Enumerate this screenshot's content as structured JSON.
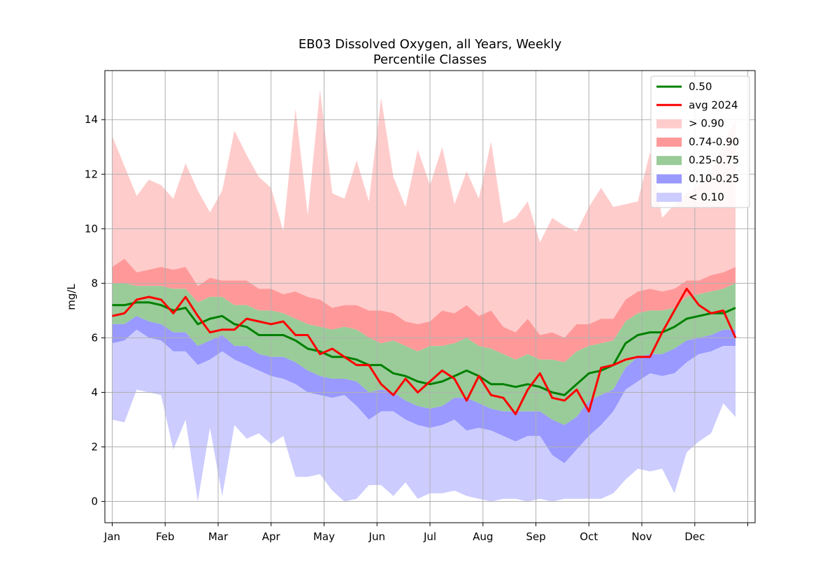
{
  "chart_data": {
    "type": "area",
    "title": "EB03 Dissolved Oxygen, all Years, Weekly",
    "subtitle": "Percentile Classes",
    "xlabel": "",
    "ylabel": "mg/L",
    "x_ticks": [
      "Jan",
      "Feb",
      "Mar",
      "Apr",
      "May",
      "Jun",
      "Jul",
      "Aug",
      "Sep",
      "Oct",
      "Nov",
      "Dec",
      ""
    ],
    "y_ticks": [
      0,
      2,
      4,
      6,
      8,
      10,
      12,
      14
    ],
    "ylim": [
      -0.78,
      15.8
    ],
    "xlim_weeks": [
      -0.6,
      52.6
    ],
    "grid": true,
    "legend_position": "top-right",
    "weeks": [
      0,
      1,
      2,
      3,
      4,
      5,
      6,
      7,
      8,
      9,
      10,
      11,
      12,
      13,
      14,
      15,
      16,
      17,
      18,
      19,
      20,
      21,
      22,
      23,
      24,
      25,
      26,
      27,
      28,
      29,
      30,
      31,
      32,
      33,
      34,
      35,
      36,
      37,
      38,
      39,
      40,
      41,
      42,
      43,
      44,
      45,
      46,
      47,
      48,
      49,
      50,
      51
    ],
    "bands": [
      {
        "name": "> 0.90",
        "color": "#ffcccc",
        "lower": [
          8.6,
          8.9,
          8.4,
          8.5,
          8.6,
          8.5,
          8.6,
          7.9,
          8.2,
          8.1,
          8.1,
          8.1,
          7.8,
          7.8,
          7.6,
          7.7,
          7.5,
          7.4,
          7.1,
          7.2,
          7.2,
          7.0,
          7.0,
          6.9,
          6.6,
          6.5,
          6.6,
          7.0,
          6.9,
          7.2,
          6.8,
          7.0,
          6.4,
          6.2,
          6.7,
          6.1,
          6.2,
          6.0,
          6.5,
          6.5,
          6.7,
          6.7,
          7.4,
          7.7,
          7.8,
          7.7,
          7.8,
          8.1,
          8.1,
          8.3,
          8.4,
          8.6
        ],
        "upper": [
          13.4,
          12.3,
          11.2,
          11.8,
          11.6,
          11.1,
          12.4,
          11.4,
          10.6,
          11.4,
          13.6,
          12.7,
          11.9,
          11.5,
          9.9,
          14.4,
          10.5,
          15.1,
          11.3,
          11.1,
          12.5,
          11.0,
          14.8,
          11.9,
          10.8,
          12.9,
          11.6,
          13.0,
          10.9,
          12.1,
          11.1,
          13.2,
          10.2,
          10.4,
          11.0,
          9.5,
          10.4,
          10.1,
          9.9,
          10.8,
          11.5,
          10.8,
          10.9,
          11.0,
          12.8,
          10.4,
          10.9,
          11.3,
          11.6,
          12.1,
          13.1,
          14.0
        ]
      },
      {
        "name": "0.74-0.90",
        "color": "#ff9999",
        "lower": [
          8.0,
          8.0,
          7.9,
          7.9,
          7.9,
          7.8,
          7.8,
          7.3,
          7.5,
          7.5,
          7.2,
          7.2,
          7.0,
          7.0,
          6.9,
          6.7,
          6.5,
          6.4,
          6.3,
          6.4,
          6.3,
          6.0,
          5.8,
          5.9,
          5.7,
          5.5,
          5.7,
          5.7,
          5.8,
          6.0,
          5.7,
          5.6,
          5.4,
          5.2,
          5.4,
          5.2,
          5.2,
          5.1,
          5.5,
          5.7,
          5.8,
          5.9,
          6.6,
          6.9,
          7.0,
          7.0,
          7.1,
          7.5,
          7.6,
          7.7,
          7.8,
          8.0
        ],
        "upper": [
          8.6,
          8.9,
          8.4,
          8.5,
          8.6,
          8.5,
          8.6,
          7.9,
          8.2,
          8.1,
          8.1,
          8.1,
          7.8,
          7.8,
          7.6,
          7.7,
          7.5,
          7.4,
          7.1,
          7.2,
          7.2,
          7.0,
          7.0,
          6.9,
          6.6,
          6.5,
          6.6,
          7.0,
          6.9,
          7.2,
          6.8,
          7.0,
          6.4,
          6.2,
          6.7,
          6.1,
          6.2,
          6.0,
          6.5,
          6.5,
          6.7,
          6.7,
          7.4,
          7.7,
          7.8,
          7.7,
          7.8,
          8.1,
          8.1,
          8.3,
          8.4,
          8.6
        ]
      },
      {
        "name": "0.25-0.75",
        "color": "#99cc99",
        "lower": [
          6.5,
          6.5,
          6.8,
          6.6,
          6.5,
          6.2,
          6.2,
          5.7,
          5.9,
          6.1,
          5.7,
          5.7,
          5.4,
          5.3,
          5.3,
          5.1,
          4.8,
          4.6,
          4.5,
          4.5,
          4.4,
          4.0,
          4.1,
          4.0,
          3.7,
          3.5,
          3.4,
          3.5,
          3.8,
          3.8,
          3.6,
          3.4,
          3.3,
          3.3,
          3.3,
          3.3,
          3.0,
          2.8,
          3.1,
          3.7,
          3.9,
          4.1,
          4.9,
          5.3,
          5.4,
          5.4,
          5.6,
          5.9,
          6.0,
          6.1,
          6.3,
          6.3
        ],
        "upper": [
          8.0,
          8.0,
          7.9,
          7.9,
          7.9,
          7.8,
          7.8,
          7.3,
          7.5,
          7.5,
          7.2,
          7.2,
          7.0,
          7.0,
          6.9,
          6.7,
          6.5,
          6.4,
          6.3,
          6.4,
          6.3,
          6.0,
          5.8,
          5.9,
          5.7,
          5.5,
          5.7,
          5.7,
          5.8,
          6.0,
          5.7,
          5.6,
          5.4,
          5.2,
          5.4,
          5.2,
          5.2,
          5.1,
          5.5,
          5.7,
          5.8,
          5.9,
          6.6,
          6.9,
          7.0,
          7.0,
          7.1,
          7.5,
          7.6,
          7.7,
          7.8,
          8.0
        ]
      },
      {
        "name": "0.10-0.25",
        "color": "#9999ff",
        "lower": [
          5.8,
          5.9,
          6.3,
          6.0,
          5.9,
          5.5,
          5.5,
          5.0,
          5.2,
          5.5,
          5.2,
          5.0,
          4.8,
          4.6,
          4.5,
          4.3,
          4.0,
          3.9,
          3.8,
          3.9,
          3.5,
          3.0,
          3.3,
          3.3,
          3.0,
          2.8,
          2.7,
          2.8,
          3.0,
          2.6,
          2.7,
          2.6,
          2.4,
          2.2,
          2.4,
          2.4,
          1.7,
          1.4,
          1.9,
          2.4,
          2.8,
          3.3,
          4.1,
          4.4,
          4.7,
          4.6,
          4.7,
          5.1,
          5.4,
          5.5,
          5.7,
          5.7
        ],
        "upper": [
          6.5,
          6.5,
          6.8,
          6.6,
          6.5,
          6.2,
          6.2,
          5.7,
          5.9,
          6.1,
          5.7,
          5.7,
          5.4,
          5.3,
          5.3,
          5.1,
          4.8,
          4.6,
          4.5,
          4.5,
          4.4,
          4.0,
          4.1,
          4.0,
          3.7,
          3.5,
          3.4,
          3.5,
          3.8,
          3.8,
          3.6,
          3.4,
          3.3,
          3.3,
          3.3,
          3.3,
          3.0,
          2.8,
          3.1,
          3.7,
          3.9,
          4.1,
          4.9,
          5.3,
          5.4,
          5.4,
          5.6,
          5.9,
          6.0,
          6.1,
          6.3,
          6.3
        ]
      },
      {
        "name": "< 0.10",
        "color": "#ccccff",
        "lower": [
          3.0,
          2.9,
          4.1,
          4.0,
          3.9,
          1.9,
          3.0,
          0.0,
          2.7,
          0.2,
          2.8,
          2.3,
          2.5,
          2.1,
          2.4,
          0.9,
          0.9,
          1.0,
          0.4,
          0.0,
          0.1,
          0.6,
          0.6,
          0.2,
          0.7,
          0.1,
          0.3,
          0.3,
          0.4,
          0.2,
          0.1,
          0.0,
          0.1,
          0.1,
          0.0,
          0.1,
          0.0,
          0.1,
          0.1,
          0.1,
          0.1,
          0.3,
          0.8,
          1.2,
          1.1,
          1.2,
          0.3,
          1.8,
          2.2,
          2.5,
          3.6,
          3.1
        ],
        "upper": [
          5.8,
          5.9,
          6.3,
          6.0,
          5.9,
          5.5,
          5.5,
          5.0,
          5.2,
          5.5,
          5.2,
          5.0,
          4.8,
          4.6,
          4.5,
          4.3,
          4.0,
          3.9,
          3.8,
          3.9,
          3.5,
          3.0,
          3.3,
          3.3,
          3.0,
          2.8,
          2.7,
          2.8,
          3.0,
          2.6,
          2.7,
          2.6,
          2.4,
          2.2,
          2.4,
          2.4,
          1.7,
          1.4,
          1.9,
          2.4,
          2.8,
          3.3,
          4.1,
          4.4,
          4.7,
          4.6,
          4.7,
          5.1,
          5.4,
          5.5,
          5.7,
          5.7
        ]
      }
    ],
    "series": [
      {
        "name": "0.50",
        "color": "#008000",
        "values": [
          7.2,
          7.2,
          7.3,
          7.3,
          7.2,
          7.0,
          7.1,
          6.5,
          6.7,
          6.8,
          6.5,
          6.4,
          6.1,
          6.1,
          6.1,
          5.9,
          5.6,
          5.5,
          5.3,
          5.3,
          5.2,
          5.0,
          5.0,
          4.7,
          4.6,
          4.4,
          4.3,
          4.4,
          4.6,
          4.8,
          4.6,
          4.3,
          4.3,
          4.2,
          4.3,
          4.2,
          4.0,
          3.9,
          4.3,
          4.7,
          4.8,
          5.0,
          5.8,
          6.1,
          6.2,
          6.2,
          6.4,
          6.7,
          6.8,
          6.9,
          6.9,
          7.1
        ]
      },
      {
        "name": "avg 2024",
        "color": "#ff0000",
        "values": [
          6.8,
          6.9,
          7.4,
          7.5,
          7.4,
          6.9,
          7.5,
          6.8,
          6.2,
          6.3,
          6.3,
          6.7,
          6.6,
          6.5,
          6.6,
          6.1,
          6.1,
          5.4,
          5.6,
          5.3,
          5.0,
          5.0,
          4.3,
          3.9,
          4.5,
          4.0,
          4.4,
          4.8,
          4.5,
          3.7,
          4.6,
          3.9,
          3.8,
          3.2,
          4.1,
          4.7,
          3.8,
          3.7,
          4.1,
          3.3,
          4.9,
          5.0,
          5.2,
          5.3,
          5.3,
          6.2,
          7.0,
          7.8,
          7.2,
          6.9,
          7.0,
          6.0
        ]
      }
    ]
  }
}
